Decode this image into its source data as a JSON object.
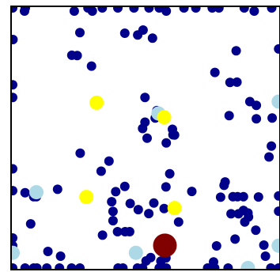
{
  "chart_data": {
    "type": "scatter",
    "title": "",
    "xlabel": "",
    "ylabel": "",
    "xlim": [
      0,
      100
    ],
    "ylim": [
      0,
      100
    ],
    "grid": false,
    "legend": "none",
    "colors": {
      "navy": "#00008b",
      "lightblue": "#add8e6",
      "yellow": "#ffff00",
      "darkred": "#800000",
      "frame": "#000000"
    },
    "series": [
      {
        "color": "navy",
        "size": "small",
        "points": [
          [
            0.6,
            99.4
          ],
          [
            5.3,
            99.4
          ],
          [
            5.0,
            98.2
          ],
          [
            23.5,
            98.2
          ],
          [
            28.6,
            99.4
          ],
          [
            30.2,
            98.2
          ],
          [
            33.9,
            99.4
          ],
          [
            39.7,
            99.4
          ],
          [
            45.7,
            99.4
          ],
          [
            51.3,
            99.4
          ],
          [
            55.1,
            99.4
          ],
          [
            57.7,
            98.2
          ],
          [
            64.3,
            99.4
          ],
          [
            68.7,
            99.4
          ],
          [
            74.8,
            99.4
          ],
          [
            77.3,
            99.4
          ],
          [
            86.7,
            99.4
          ],
          [
            90.4,
            98.2
          ],
          [
            96.9,
            99.4
          ],
          [
            25.6,
            90.0
          ],
          [
            42.3,
            89.8
          ],
          [
            47.1,
            89.1
          ],
          [
            49.1,
            91.0
          ],
          [
            52.6,
            87.9
          ],
          [
            0.7,
            87.4
          ],
          [
            22.6,
            81.4
          ],
          [
            24.6,
            81.3
          ],
          [
            83.7,
            83.1
          ],
          [
            29.9,
            77.3
          ],
          [
            99.5,
            83.8
          ],
          [
            75.8,
            74.9
          ],
          [
            81.4,
            71.1
          ],
          [
            84.0,
            71.2
          ],
          [
            0.6,
            70.2
          ],
          [
            49.8,
            65.4
          ],
          [
            88.8,
            63.8
          ],
          [
            91.2,
            62.4
          ],
          [
            0.6,
            65.4
          ],
          [
            54.2,
            60.4
          ],
          [
            91.2,
            57.3
          ],
          [
            53.6,
            57.6
          ],
          [
            49.8,
            56.0
          ],
          [
            60.2,
            51.2
          ],
          [
            60.0,
            53.3
          ],
          [
            48.9,
            53.6
          ],
          [
            81.1,
            58.5
          ],
          [
            97.1,
            57.6
          ],
          [
            60.8,
            51.1
          ],
          [
            50.6,
            49.9
          ],
          [
            57.7,
            48.1
          ],
          [
            96.8,
            46.9
          ],
          [
            95.9,
            42.8
          ],
          [
            25.7,
            44.2
          ],
          [
            36.4,
            41.2
          ],
          [
            33.5,
            37.4
          ],
          [
            0.6,
            38.3
          ],
          [
            59.0,
            36.4
          ],
          [
            79.6,
            33.3
          ],
          [
            79.2,
            32.0
          ],
          [
            0.6,
            30.0
          ],
          [
            17.3,
            30.5
          ],
          [
            5.2,
            29.2
          ],
          [
            8.4,
            27.7
          ],
          [
            9.4,
            27.7
          ],
          [
            38.9,
            29.6
          ],
          [
            42.3,
            31.6
          ],
          [
            57.6,
            31.4
          ],
          [
            67.2,
            29.7
          ],
          [
            84.2,
            27.7
          ],
          [
            86.4,
            27.7
          ],
          [
            82.5,
            27.7
          ],
          [
            77.9,
            27.5
          ],
          [
            92.0,
            27.6
          ],
          [
            99.5,
            28.0
          ],
          [
            53.1,
            25.3
          ],
          [
            56.9,
            23.2
          ],
          [
            44.3,
            25.1
          ],
          [
            47.3,
            22.8
          ],
          [
            37.4,
            25.8
          ],
          [
            37.9,
            22.1
          ],
          [
            51.2,
            21.3
          ],
          [
            86.4,
            22.5
          ],
          [
            81.8,
            21.2
          ],
          [
            84.6,
            21.2
          ],
          [
            88.1,
            21.5
          ],
          [
            88.3,
            20.0
          ],
          [
            99.5,
            22.2
          ],
          [
            37.9,
            18.6
          ],
          [
            62.3,
            18.1
          ],
          [
            86.9,
            18.1
          ],
          [
            7.3,
            17.4
          ],
          [
            42.4,
            14.4
          ],
          [
            39.6,
            14.4
          ],
          [
            44.1,
            14.4
          ],
          [
            91.0,
            15.0
          ],
          [
            34.0,
            13.1
          ],
          [
            83.3,
            11.6
          ],
          [
            0.6,
            12.0
          ],
          [
            76.4,
            9.0
          ],
          [
            94.0,
            9.3
          ],
          [
            0.6,
            9.1
          ],
          [
            13.7,
            6.9
          ],
          [
            18.4,
            5.1
          ],
          [
            51.9,
            4.6
          ],
          [
            50.2,
            3.3
          ],
          [
            57.6,
            4.4
          ],
          [
            55.7,
            3.2
          ],
          [
            75.3,
            2.9
          ],
          [
            94.6,
            5.1
          ],
          [
            0.6,
            0.6
          ],
          [
            5.2,
            0.6
          ],
          [
            8.4,
            0.6
          ],
          [
            9.6,
            0.6
          ],
          [
            13.3,
            0.6
          ],
          [
            18.0,
            0.6
          ],
          [
            22.5,
            0.6
          ],
          [
            25.6,
            0.6
          ],
          [
            39.8,
            0.6
          ],
          [
            41.6,
            0.6
          ],
          [
            47.0,
            0.6
          ],
          [
            48.9,
            0.6
          ],
          [
            55.1,
            0.6
          ],
          [
            56.4,
            0.6
          ],
          [
            57.7,
            0.6
          ],
          [
            73.1,
            0.6
          ],
          [
            75.7,
            0.6
          ],
          [
            80.7,
            0.6
          ],
          [
            87.3,
            0.6
          ],
          [
            96.6,
            0.6
          ],
          [
            99.5,
            0.6
          ]
        ]
      },
      {
        "color": "lightblue",
        "size": "medium",
        "points": [
          [
            54.8,
            59.3
          ],
          [
            9.4,
            29.4
          ],
          [
            0.6,
            6.4
          ],
          [
            46.4,
            6.4
          ],
          [
            99.5,
            9.1
          ],
          [
            88.1,
            0.6
          ],
          [
            99.5,
            63.8
          ]
        ]
      },
      {
        "color": "yellow",
        "size": "medium",
        "points": [
          [
            31.8,
            63.4
          ],
          [
            56.9,
            57.9
          ],
          [
            28.0,
            27.6
          ],
          [
            60.8,
            23.4
          ]
        ]
      },
      {
        "color": "darkred",
        "size": "large",
        "points": [
          [
            57.2,
            9.2
          ]
        ]
      }
    ]
  }
}
